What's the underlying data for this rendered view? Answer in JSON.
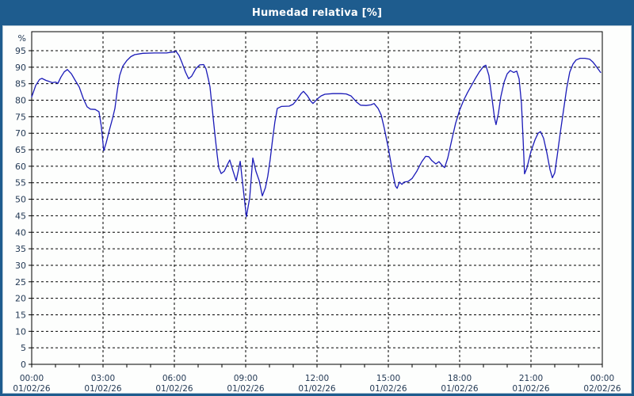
{
  "title": "Humedad relativa [%]",
  "colors": {
    "frame_blue": "#1e5c8e",
    "inner_edge": "#b7c9d6",
    "plot_bg": "#fdfefd",
    "grid": "#000000",
    "axis_text": "#243a55",
    "line": "#1a1ab8"
  },
  "chart_data": {
    "type": "line",
    "title": "Humedad relativa [%]",
    "y_axis_unit": "%",
    "xlabel": "",
    "ylabel": "%",
    "xlim_hours": [
      0,
      24
    ],
    "ylim": [
      0,
      100.5
    ],
    "grid": "dashed",
    "legend": "none",
    "y_ticks": [
      0,
      5,
      10,
      15,
      20,
      25,
      30,
      35,
      40,
      45,
      50,
      55,
      60,
      65,
      70,
      75,
      80,
      85,
      90,
      95
    ],
    "x_ticks": [
      {
        "hour": 0,
        "time": "00:00",
        "date": "01/02/26"
      },
      {
        "hour": 3,
        "time": "03:00",
        "date": "01/02/26"
      },
      {
        "hour": 6,
        "time": "06:00",
        "date": "01/02/26"
      },
      {
        "hour": 9,
        "time": "09:00",
        "date": "01/02/26"
      },
      {
        "hour": 12,
        "time": "12:00",
        "date": "01/02/26"
      },
      {
        "hour": 15,
        "time": "15:00",
        "date": "01/02/26"
      },
      {
        "hour": 18,
        "time": "18:00",
        "date": "01/02/26"
      },
      {
        "hour": 21,
        "time": "21:00",
        "date": "01/02/26"
      },
      {
        "hour": 24,
        "time": "00:00",
        "date": "02/02/26"
      }
    ],
    "minor_x_tick_every_hours": 1,
    "series": [
      {
        "name": "Humedad relativa",
        "color": "#1a1ab8",
        "points": [
          [
            0,
            81
          ],
          [
            0.17,
            84.5
          ],
          [
            0.33,
            86.3
          ],
          [
            0.43,
            86.6
          ],
          [
            0.6,
            86
          ],
          [
            0.73,
            85.7
          ],
          [
            0.87,
            85.3
          ],
          [
            1,
            85.5
          ],
          [
            1.1,
            85.1
          ],
          [
            1.23,
            87
          ],
          [
            1.37,
            88.6
          ],
          [
            1.5,
            89.3
          ],
          [
            1.67,
            88
          ],
          [
            1.83,
            86
          ],
          [
            2,
            84
          ],
          [
            2.17,
            80.5
          ],
          [
            2.33,
            78
          ],
          [
            2.47,
            77.3
          ],
          [
            2.67,
            77.2
          ],
          [
            2.83,
            76.5
          ],
          [
            2.93,
            72
          ],
          [
            3.03,
            64.7
          ],
          [
            3.13,
            67
          ],
          [
            3.27,
            71
          ],
          [
            3.4,
            74.5
          ],
          [
            3.5,
            77.5
          ],
          [
            3.6,
            83
          ],
          [
            3.7,
            87.5
          ],
          [
            3.83,
            90.3
          ],
          [
            4,
            92
          ],
          [
            4.17,
            93.2
          ],
          [
            4.33,
            93.8
          ],
          [
            4.67,
            94.2
          ],
          [
            5.17,
            94.3
          ],
          [
            5.67,
            94.3
          ],
          [
            5.93,
            94.6
          ],
          [
            6.07,
            94.8
          ],
          [
            6.2,
            93.5
          ],
          [
            6.33,
            91.2
          ],
          [
            6.47,
            88.5
          ],
          [
            6.6,
            86.5
          ],
          [
            6.73,
            87.3
          ],
          [
            6.9,
            89.5
          ],
          [
            7.07,
            90.7
          ],
          [
            7.23,
            90.8
          ],
          [
            7.33,
            89.5
          ],
          [
            7.43,
            86.4
          ],
          [
            7.5,
            84
          ],
          [
            7.6,
            77
          ],
          [
            7.7,
            70
          ],
          [
            7.8,
            63.5
          ],
          [
            7.87,
            59.5
          ],
          [
            7.97,
            57.8
          ],
          [
            8.1,
            58.5
          ],
          [
            8.23,
            60.5
          ],
          [
            8.33,
            61.9
          ],
          [
            8.47,
            58.5
          ],
          [
            8.6,
            55.6
          ],
          [
            8.7,
            59
          ],
          [
            8.77,
            61.5
          ],
          [
            8.9,
            53
          ],
          [
            9.03,
            44.7
          ],
          [
            9.17,
            50.5
          ],
          [
            9.3,
            62.5
          ],
          [
            9.43,
            58.5
          ],
          [
            9.57,
            55.6
          ],
          [
            9.7,
            51
          ],
          [
            9.83,
            53.5
          ],
          [
            9.93,
            57
          ],
          [
            10.03,
            62
          ],
          [
            10.13,
            68
          ],
          [
            10.23,
            73.5
          ],
          [
            10.33,
            77.5
          ],
          [
            10.5,
            78.1
          ],
          [
            10.83,
            78.2
          ],
          [
            11,
            78.8
          ],
          [
            11.17,
            80.3
          ],
          [
            11.33,
            82
          ],
          [
            11.43,
            82.7
          ],
          [
            11.6,
            81.3
          ],
          [
            11.73,
            79.8
          ],
          [
            11.83,
            79
          ],
          [
            12,
            80.3
          ],
          [
            12.17,
            81.3
          ],
          [
            12.33,
            81.8
          ],
          [
            12.67,
            82
          ],
          [
            13,
            82
          ],
          [
            13.23,
            81.9
          ],
          [
            13.43,
            81.3
          ],
          [
            13.67,
            79.4
          ],
          [
            13.83,
            78.5
          ],
          [
            14.07,
            78.4
          ],
          [
            14.27,
            78.6
          ],
          [
            14.4,
            79
          ],
          [
            14.57,
            77.5
          ],
          [
            14.7,
            75.5
          ],
          [
            14.83,
            71.5
          ],
          [
            15,
            65.5
          ],
          [
            15.17,
            58.5
          ],
          [
            15.3,
            54
          ],
          [
            15.37,
            53.3
          ],
          [
            15.47,
            55.2
          ],
          [
            15.57,
            54.5
          ],
          [
            15.67,
            55.2
          ],
          [
            15.83,
            55.4
          ],
          [
            16,
            56.3
          ],
          [
            16.2,
            58.5
          ],
          [
            16.4,
            61.3
          ],
          [
            16.57,
            63
          ],
          [
            16.7,
            62.9
          ],
          [
            16.83,
            61.7
          ],
          [
            17,
            60.7
          ],
          [
            17.13,
            61.4
          ],
          [
            17.27,
            60.2
          ],
          [
            17.37,
            59.6
          ],
          [
            17.5,
            62.5
          ],
          [
            17.67,
            68
          ],
          [
            17.83,
            73
          ],
          [
            18,
            77
          ],
          [
            18.17,
            80
          ],
          [
            18.33,
            82.3
          ],
          [
            18.5,
            84.5
          ],
          [
            18.67,
            86.7
          ],
          [
            18.83,
            88.6
          ],
          [
            19,
            90.2
          ],
          [
            19.1,
            90.6
          ],
          [
            19.23,
            87.5
          ],
          [
            19.37,
            80
          ],
          [
            19.47,
            74.5
          ],
          [
            19.53,
            72.6
          ],
          [
            19.63,
            76
          ],
          [
            19.73,
            81
          ],
          [
            19.87,
            85.5
          ],
          [
            20,
            88
          ],
          [
            20.13,
            89
          ],
          [
            20.27,
            88.4
          ],
          [
            20.4,
            88.8
          ],
          [
            20.5,
            86.5
          ],
          [
            20.6,
            79
          ],
          [
            20.67,
            68
          ],
          [
            20.73,
            57.7
          ],
          [
            20.83,
            59.5
          ],
          [
            21,
            64.5
          ],
          [
            21.17,
            68
          ],
          [
            21.3,
            70
          ],
          [
            21.4,
            70.5
          ],
          [
            21.53,
            68.5
          ],
          [
            21.67,
            64
          ],
          [
            21.8,
            59
          ],
          [
            21.9,
            56.5
          ],
          [
            22,
            58
          ],
          [
            22.1,
            63
          ],
          [
            22.23,
            70
          ],
          [
            22.37,
            77
          ],
          [
            22.5,
            83.5
          ],
          [
            22.63,
            88.5
          ],
          [
            22.77,
            91
          ],
          [
            22.9,
            92.2
          ],
          [
            23.07,
            92.7
          ],
          [
            23.27,
            92.7
          ],
          [
            23.47,
            92.4
          ],
          [
            23.6,
            91.6
          ],
          [
            23.73,
            90.4
          ],
          [
            23.87,
            89
          ],
          [
            23.93,
            88.4
          ]
        ]
      }
    ]
  }
}
